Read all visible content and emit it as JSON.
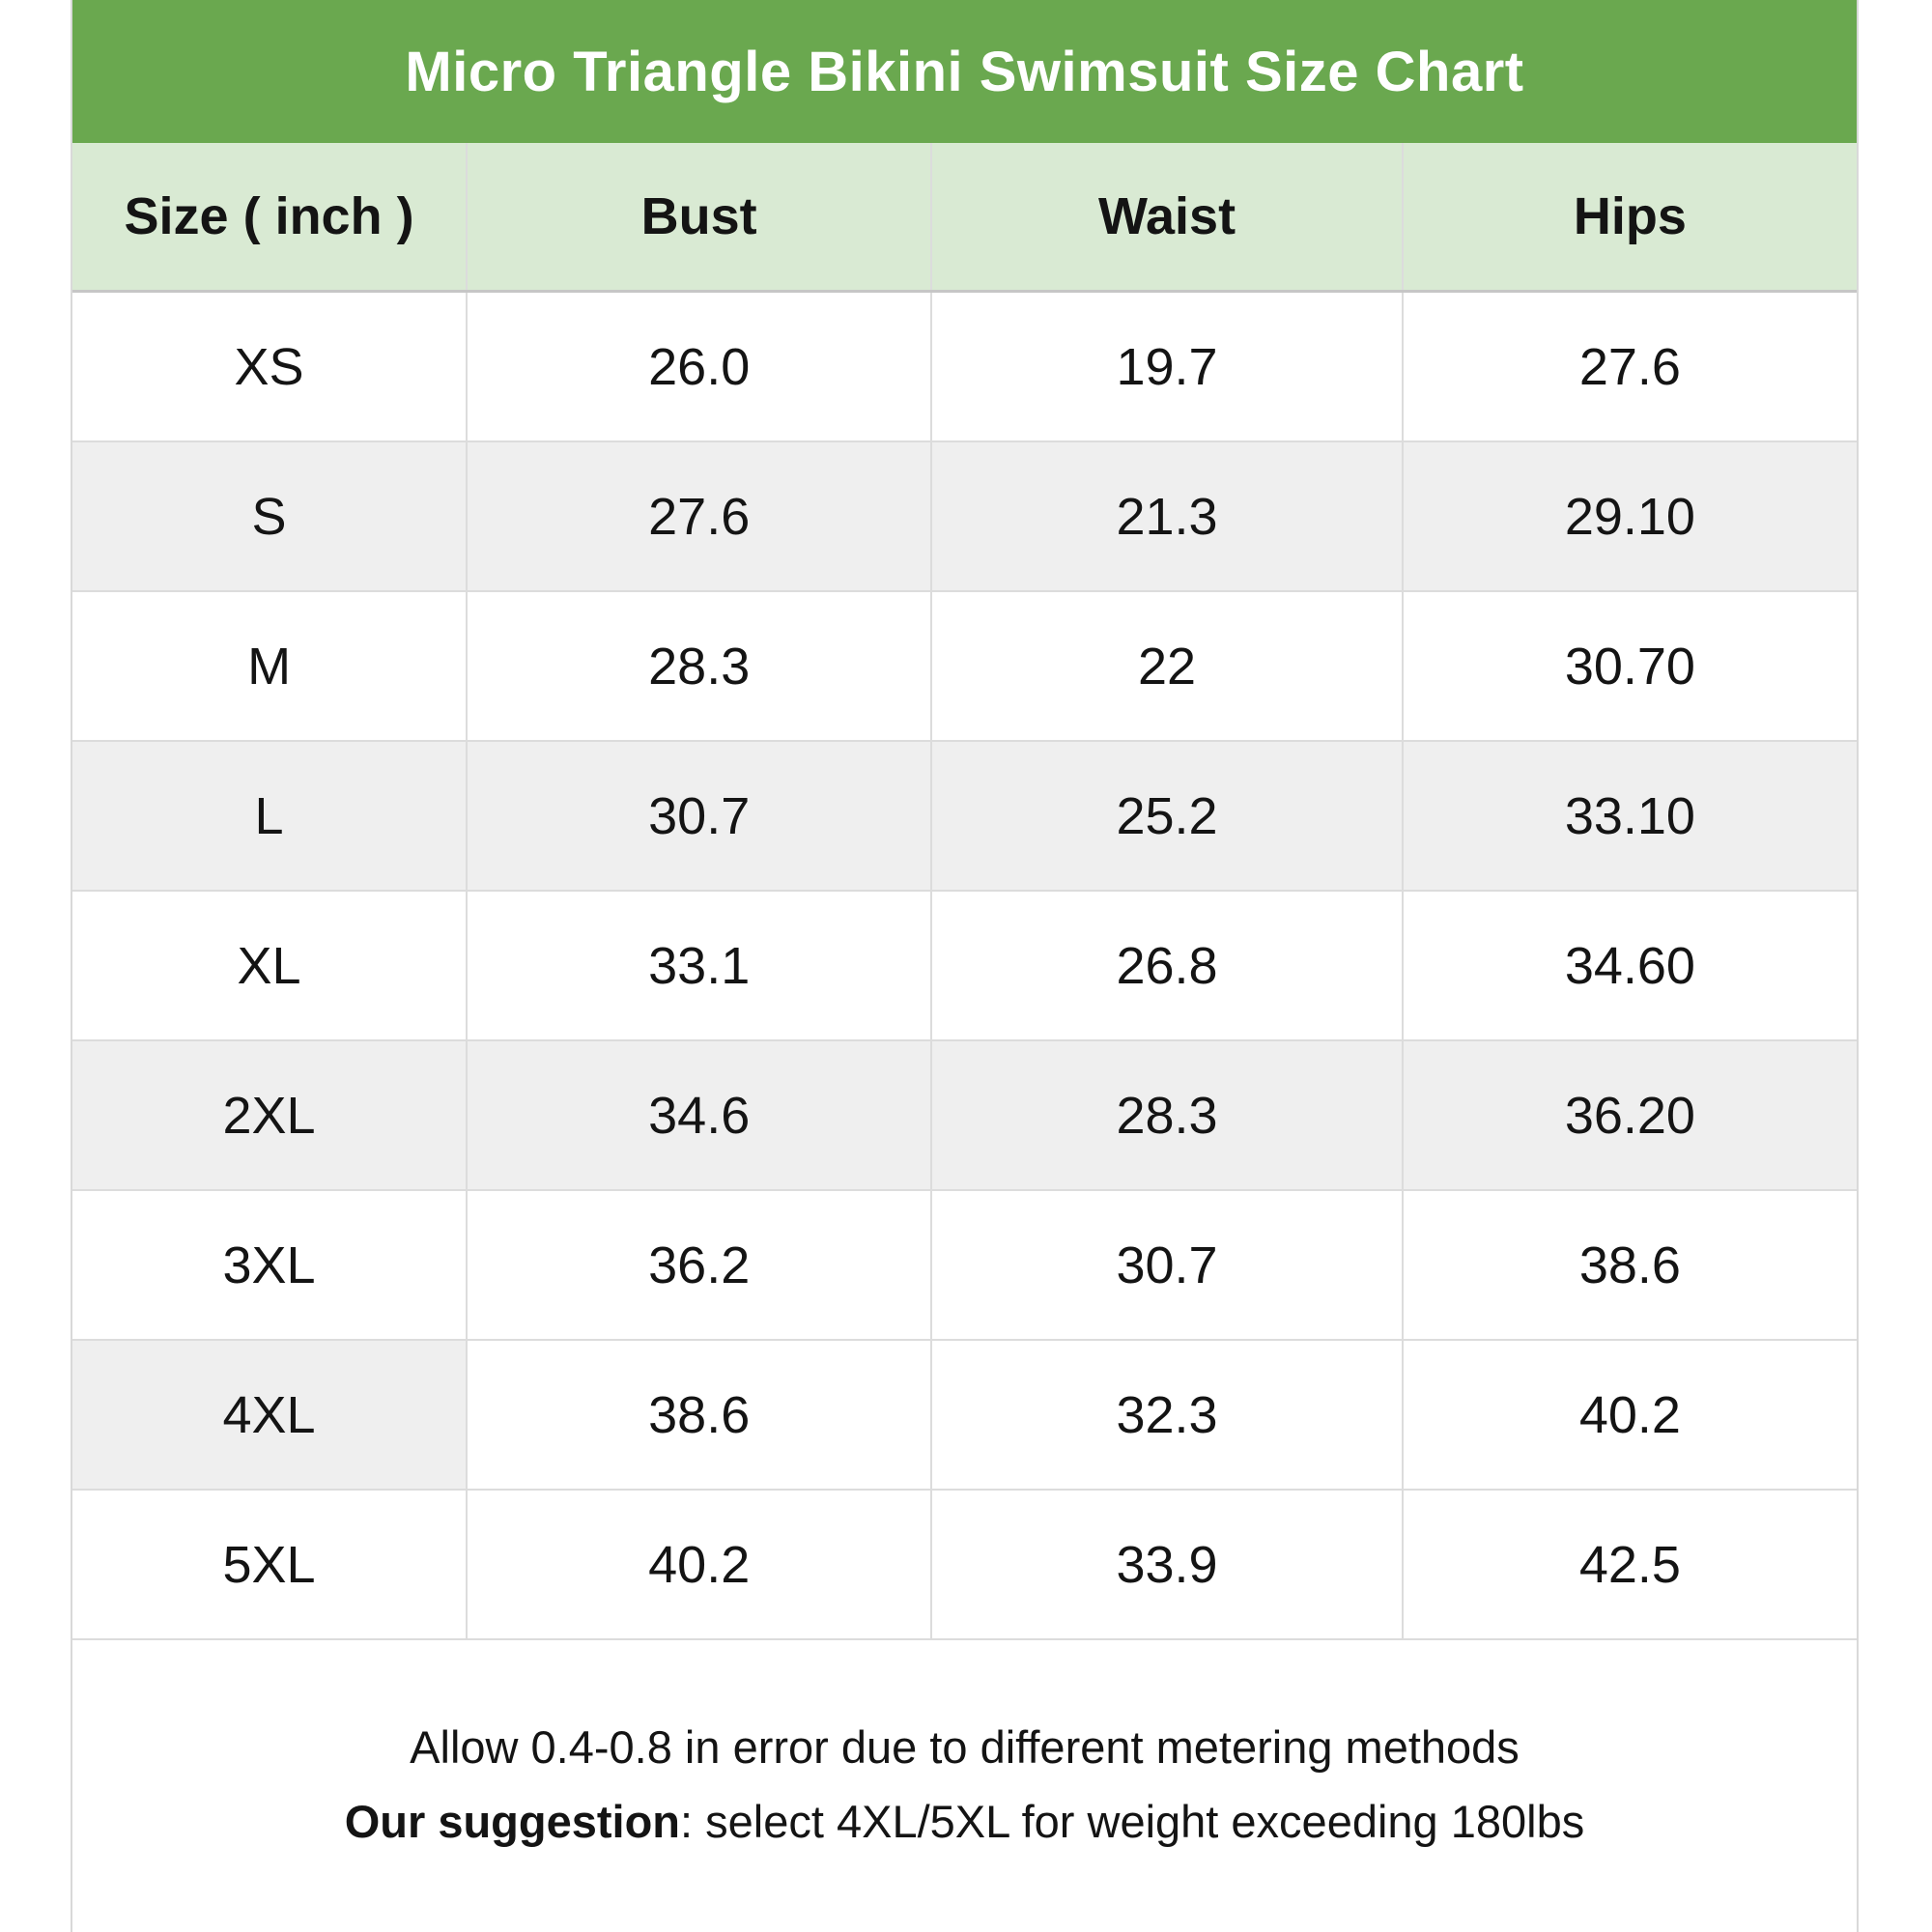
{
  "chart_data": {
    "type": "table",
    "title": "Micro Triangle Bikini Swimsuit Size Chart",
    "unit": "inch",
    "columns": [
      "Size ( inch )",
      "Bust",
      "Waist",
      "Hips"
    ],
    "rows": [
      {
        "size": "XS",
        "bust": "26.0",
        "waist": "19.7",
        "hips": "27.6"
      },
      {
        "size": "S",
        "bust": "27.6",
        "waist": "21.3",
        "hips": "29.10"
      },
      {
        "size": "M",
        "bust": "28.3",
        "waist": "22",
        "hips": "30.70"
      },
      {
        "size": "L",
        "bust": "30.7",
        "waist": "25.2",
        "hips": "33.10"
      },
      {
        "size": "XL",
        "bust": "33.1",
        "waist": "26.8",
        "hips": "34.60"
      },
      {
        "size": "2XL",
        "bust": "34.6",
        "waist": "28.3",
        "hips": "36.20"
      },
      {
        "size": "3XL",
        "bust": "36.2",
        "waist": "30.7",
        "hips": "38.6"
      },
      {
        "size": "4XL",
        "bust": "38.6",
        "waist": "32.3",
        "hips": "40.2"
      },
      {
        "size": "5XL",
        "bust": "40.2",
        "waist": "33.9",
        "hips": "42.5"
      }
    ]
  },
  "footer": {
    "line1": "Allow 0.4-0.8 in error due to different metering methods",
    "line2_bold": "Our suggestion",
    "line2_rest": ": select 4XL/5XL for weight exceeding 180lbs"
  },
  "colors": {
    "title_bar_green": "#6aa84f",
    "header_row_green": "#d9ead3",
    "alt_row_gray": "#efefef",
    "border_gray": "#dcdcdc",
    "title_text": "#ffffff",
    "body_text": "#141414"
  }
}
